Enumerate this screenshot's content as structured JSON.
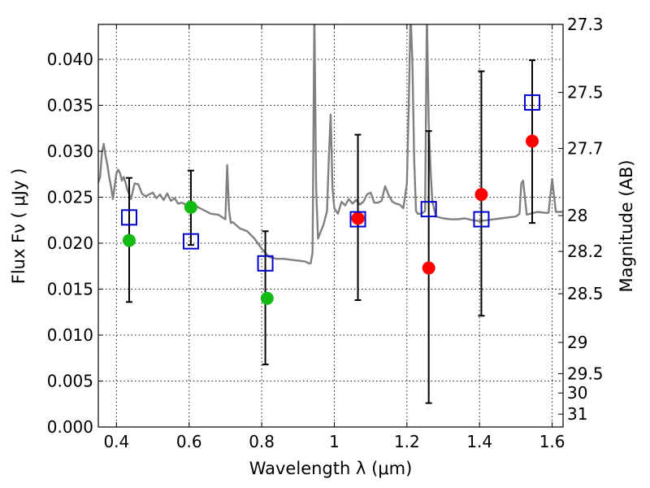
{
  "chart_data": {
    "type": "scatter",
    "xlabel": "Wavelength  λ (μm)",
    "ylabel": "Flux  Fν  ( μJy )",
    "y2label": "Magnitude (AB)",
    "xlim": [
      0.35,
      1.63
    ],
    "ylim": [
      0.0,
      0.0438
    ],
    "grid": true,
    "x_ticks": [
      0.4,
      0.6,
      0.8,
      1.0,
      1.2,
      1.4,
      1.6
    ],
    "x_tick_labels": [
      "0.4",
      "0.6",
      "0.8",
      "1",
      "1.2",
      "1.4",
      "1.6"
    ],
    "y_ticks": [
      0.0,
      0.005,
      0.01,
      0.015,
      0.02,
      0.025,
      0.03,
      0.035,
      0.04
    ],
    "y_tick_labels": [
      "0.000",
      "0.005",
      "0.010",
      "0.015",
      "0.020",
      "0.025",
      "0.030",
      "0.035",
      "0.040"
    ],
    "y2_ticks": [
      {
        "label": "27.3",
        "flux": 0.0438
      },
      {
        "label": "27.5",
        "flux": 0.0364
      },
      {
        "label": "27.7",
        "flux": 0.0303
      },
      {
        "label": "28",
        "flux": 0.023
      },
      {
        "label": "28.2",
        "flux": 0.0191
      },
      {
        "label": "28.5",
        "flux": 0.0145
      },
      {
        "label": "29",
        "flux": 0.0092
      },
      {
        "label": "29.5",
        "flux": 0.0058
      },
      {
        "label": "30",
        "flux": 0.0037
      },
      {
        "label": "31",
        "flux": 0.0014
      }
    ],
    "series": [
      {
        "name": "model spectrum",
        "kind": "line",
        "color": "#808080",
        "x": [
          0.35,
          0.355,
          0.36,
          0.365,
          0.37,
          0.375,
          0.38,
          0.385,
          0.39,
          0.395,
          0.4,
          0.405,
          0.41,
          0.415,
          0.42,
          0.425,
          0.43,
          0.44,
          0.45,
          0.46,
          0.47,
          0.48,
          0.49,
          0.5,
          0.51,
          0.52,
          0.53,
          0.54,
          0.55,
          0.56,
          0.57,
          0.58,
          0.59,
          0.6,
          0.62,
          0.64,
          0.66,
          0.68,
          0.7,
          0.705,
          0.71,
          0.715,
          0.72,
          0.74,
          0.76,
          0.78,
          0.8,
          0.82,
          0.84,
          0.86,
          0.88,
          0.9,
          0.92,
          0.93,
          0.935,
          0.94,
          0.945,
          0.95,
          0.955,
          0.96,
          0.97,
          0.98,
          0.985,
          0.99,
          0.995,
          1.0,
          1.01,
          1.02,
          1.03,
          1.04,
          1.05,
          1.06,
          1.07,
          1.08,
          1.09,
          1.1,
          1.11,
          1.12,
          1.13,
          1.14,
          1.15,
          1.16,
          1.17,
          1.18,
          1.19,
          1.2,
          1.205,
          1.21,
          1.215,
          1.22,
          1.225,
          1.23,
          1.24,
          1.25,
          1.255,
          1.26,
          1.265,
          1.27,
          1.28,
          1.3,
          1.32,
          1.34,
          1.36,
          1.38,
          1.4,
          1.42,
          1.44,
          1.46,
          1.48,
          1.5,
          1.51,
          1.515,
          1.52,
          1.53,
          1.56,
          1.58,
          1.59,
          1.6,
          1.61,
          1.62,
          1.63
        ],
        "y": [
          0.0266,
          0.0272,
          0.0299,
          0.0308,
          0.0295,
          0.0285,
          0.0272,
          0.0262,
          0.0248,
          0.0262,
          0.0276,
          0.028,
          0.0276,
          0.0268,
          0.0272,
          0.0266,
          0.0258,
          0.0248,
          0.0265,
          0.0264,
          0.0254,
          0.0251,
          0.0253,
          0.0255,
          0.0249,
          0.0253,
          0.0247,
          0.0254,
          0.0246,
          0.0249,
          0.0243,
          0.0244,
          0.0242,
          0.0245,
          0.024,
          0.0236,
          0.0232,
          0.0231,
          0.0226,
          0.0285,
          0.0236,
          0.0222,
          0.0223,
          0.0216,
          0.0213,
          0.0205,
          0.0194,
          0.0185,
          0.0183,
          0.0183,
          0.0182,
          0.0181,
          0.018,
          0.0178,
          0.0178,
          0.019,
          0.045,
          0.026,
          0.0205,
          0.021,
          0.022,
          0.0235,
          0.0295,
          0.034,
          0.026,
          0.0238,
          0.0232,
          0.0245,
          0.0241,
          0.0248,
          0.0243,
          0.0247,
          0.0242,
          0.0245,
          0.0253,
          0.0255,
          0.0244,
          0.0244,
          0.0246,
          0.0262,
          0.0252,
          0.0245,
          0.0243,
          0.0242,
          0.0238,
          0.0265,
          0.035,
          0.045,
          0.04,
          0.029,
          0.0235,
          0.0232,
          0.0232,
          0.0235,
          0.045,
          0.033,
          0.028,
          0.0245,
          0.0229,
          0.0227,
          0.0226,
          0.0226,
          0.0227,
          0.0225,
          0.0224,
          0.0225,
          0.0226,
          0.0227,
          0.0228,
          0.0229,
          0.0232,
          0.0265,
          0.0268,
          0.0231,
          0.0234,
          0.0233,
          0.0233,
          0.027,
          0.0234,
          0.0234,
          0.0234
        ]
      },
      {
        "name": "observed photometry",
        "kind": "errorbar",
        "color": "#000000",
        "x": [
          0.435,
          0.605,
          0.81,
          1.065,
          1.26,
          1.405,
          1.545
        ],
        "y": [
          0.0228,
          0.0202,
          0.0178,
          0.0226,
          0.0237,
          0.0226,
          0.0353
        ],
        "y_low": [
          0.0136,
          0.0198,
          0.0068,
          0.0138,
          0.0026,
          0.0121,
          0.0222
        ],
        "y_high": [
          0.0271,
          0.0279,
          0.0213,
          0.0318,
          0.0322,
          0.0387,
          0.0399
        ]
      },
      {
        "name": "model flux",
        "kind": "square",
        "color": "#0000cc",
        "x": [
          0.435,
          0.605,
          0.81,
          1.065,
          1.26,
          1.405,
          1.545
        ],
        "y": [
          0.0228,
          0.0202,
          0.0178,
          0.0226,
          0.0237,
          0.0226,
          0.0353
        ]
      },
      {
        "name": "green points",
        "kind": "circle",
        "color": "#11bb11",
        "x": [
          0.435,
          0.605,
          0.815
        ],
        "y": [
          0.0203,
          0.0239,
          0.014
        ]
      },
      {
        "name": "red points",
        "kind": "circle",
        "color": "#ff0000",
        "x": [
          1.065,
          1.26,
          1.405,
          1.545
        ],
        "y": [
          0.0227,
          0.0173,
          0.0253,
          0.0311
        ]
      }
    ]
  }
}
